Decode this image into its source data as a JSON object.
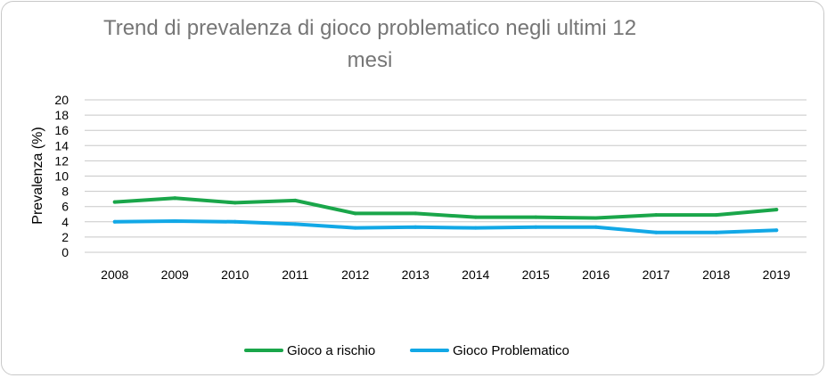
{
  "chart_data": {
    "type": "line",
    "title": "Trend di prevalenza di gioco problematico negli ultimi 12 mesi",
    "xlabel": "",
    "ylabel": "Prevalenza (%)",
    "ylim": [
      0,
      20
    ],
    "yticks": [
      "0",
      "2",
      "4",
      "6",
      "8",
      "10",
      "12",
      "14",
      "16",
      "18",
      "20"
    ],
    "categories": [
      "2008",
      "2009",
      "2010",
      "2011",
      "2012",
      "2013",
      "2014",
      "2015",
      "2016",
      "2017",
      "2018",
      "2019"
    ],
    "grid": true,
    "legend_position": "bottom",
    "series": [
      {
        "name": "Gioco a rischio",
        "color": "#1aa64a",
        "values": [
          6.6,
          7.1,
          6.5,
          6.8,
          5.1,
          5.1,
          4.6,
          4.6,
          4.5,
          4.9,
          4.9,
          5.6
        ]
      },
      {
        "name": "Gioco Problematico",
        "color": "#12a8e6",
        "values": [
          4.0,
          4.1,
          4.0,
          3.7,
          3.2,
          3.3,
          3.2,
          3.3,
          3.3,
          2.6,
          2.6,
          2.9
        ]
      }
    ]
  }
}
